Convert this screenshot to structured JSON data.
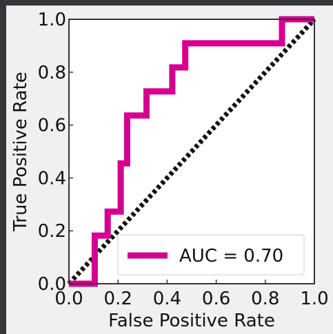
{
  "chart_data": {
    "type": "line",
    "xlabel": "False Positive Rate",
    "ylabel": "True Positive Rate",
    "xlim": [
      0.0,
      1.0
    ],
    "ylim": [
      0.0,
      1.0
    ],
    "xticks": [
      "0.0",
      "0.2",
      "0.4",
      "0.6",
      "0.8",
      "1.0"
    ],
    "yticks": [
      "0.0",
      "0.2",
      "0.4",
      "0.6",
      "0.8",
      "1.0"
    ],
    "grid": false,
    "legend_position": "lower-right",
    "series": [
      {
        "name": "AUC = 0.70",
        "color": "#d4008f",
        "style": "solid",
        "x": [
          0.0,
          0.105,
          0.105,
          0.105,
          0.158,
          0.158,
          0.211,
          0.211,
          0.237,
          0.237,
          0.316,
          0.316,
          0.421,
          0.421,
          0.474,
          0.474,
          0.868,
          0.868,
          1.0
        ],
        "y": [
          0.0,
          0.0,
          0.091,
          0.182,
          0.182,
          0.273,
          0.273,
          0.455,
          0.455,
          0.636,
          0.636,
          0.727,
          0.727,
          0.818,
          0.818,
          0.909,
          0.909,
          1.0,
          1.0
        ]
      },
      {
        "color": "#111111",
        "style": "dotted",
        "x": [
          0.0,
          1.0
        ],
        "y": [
          0.0,
          1.0
        ]
      }
    ]
  }
}
